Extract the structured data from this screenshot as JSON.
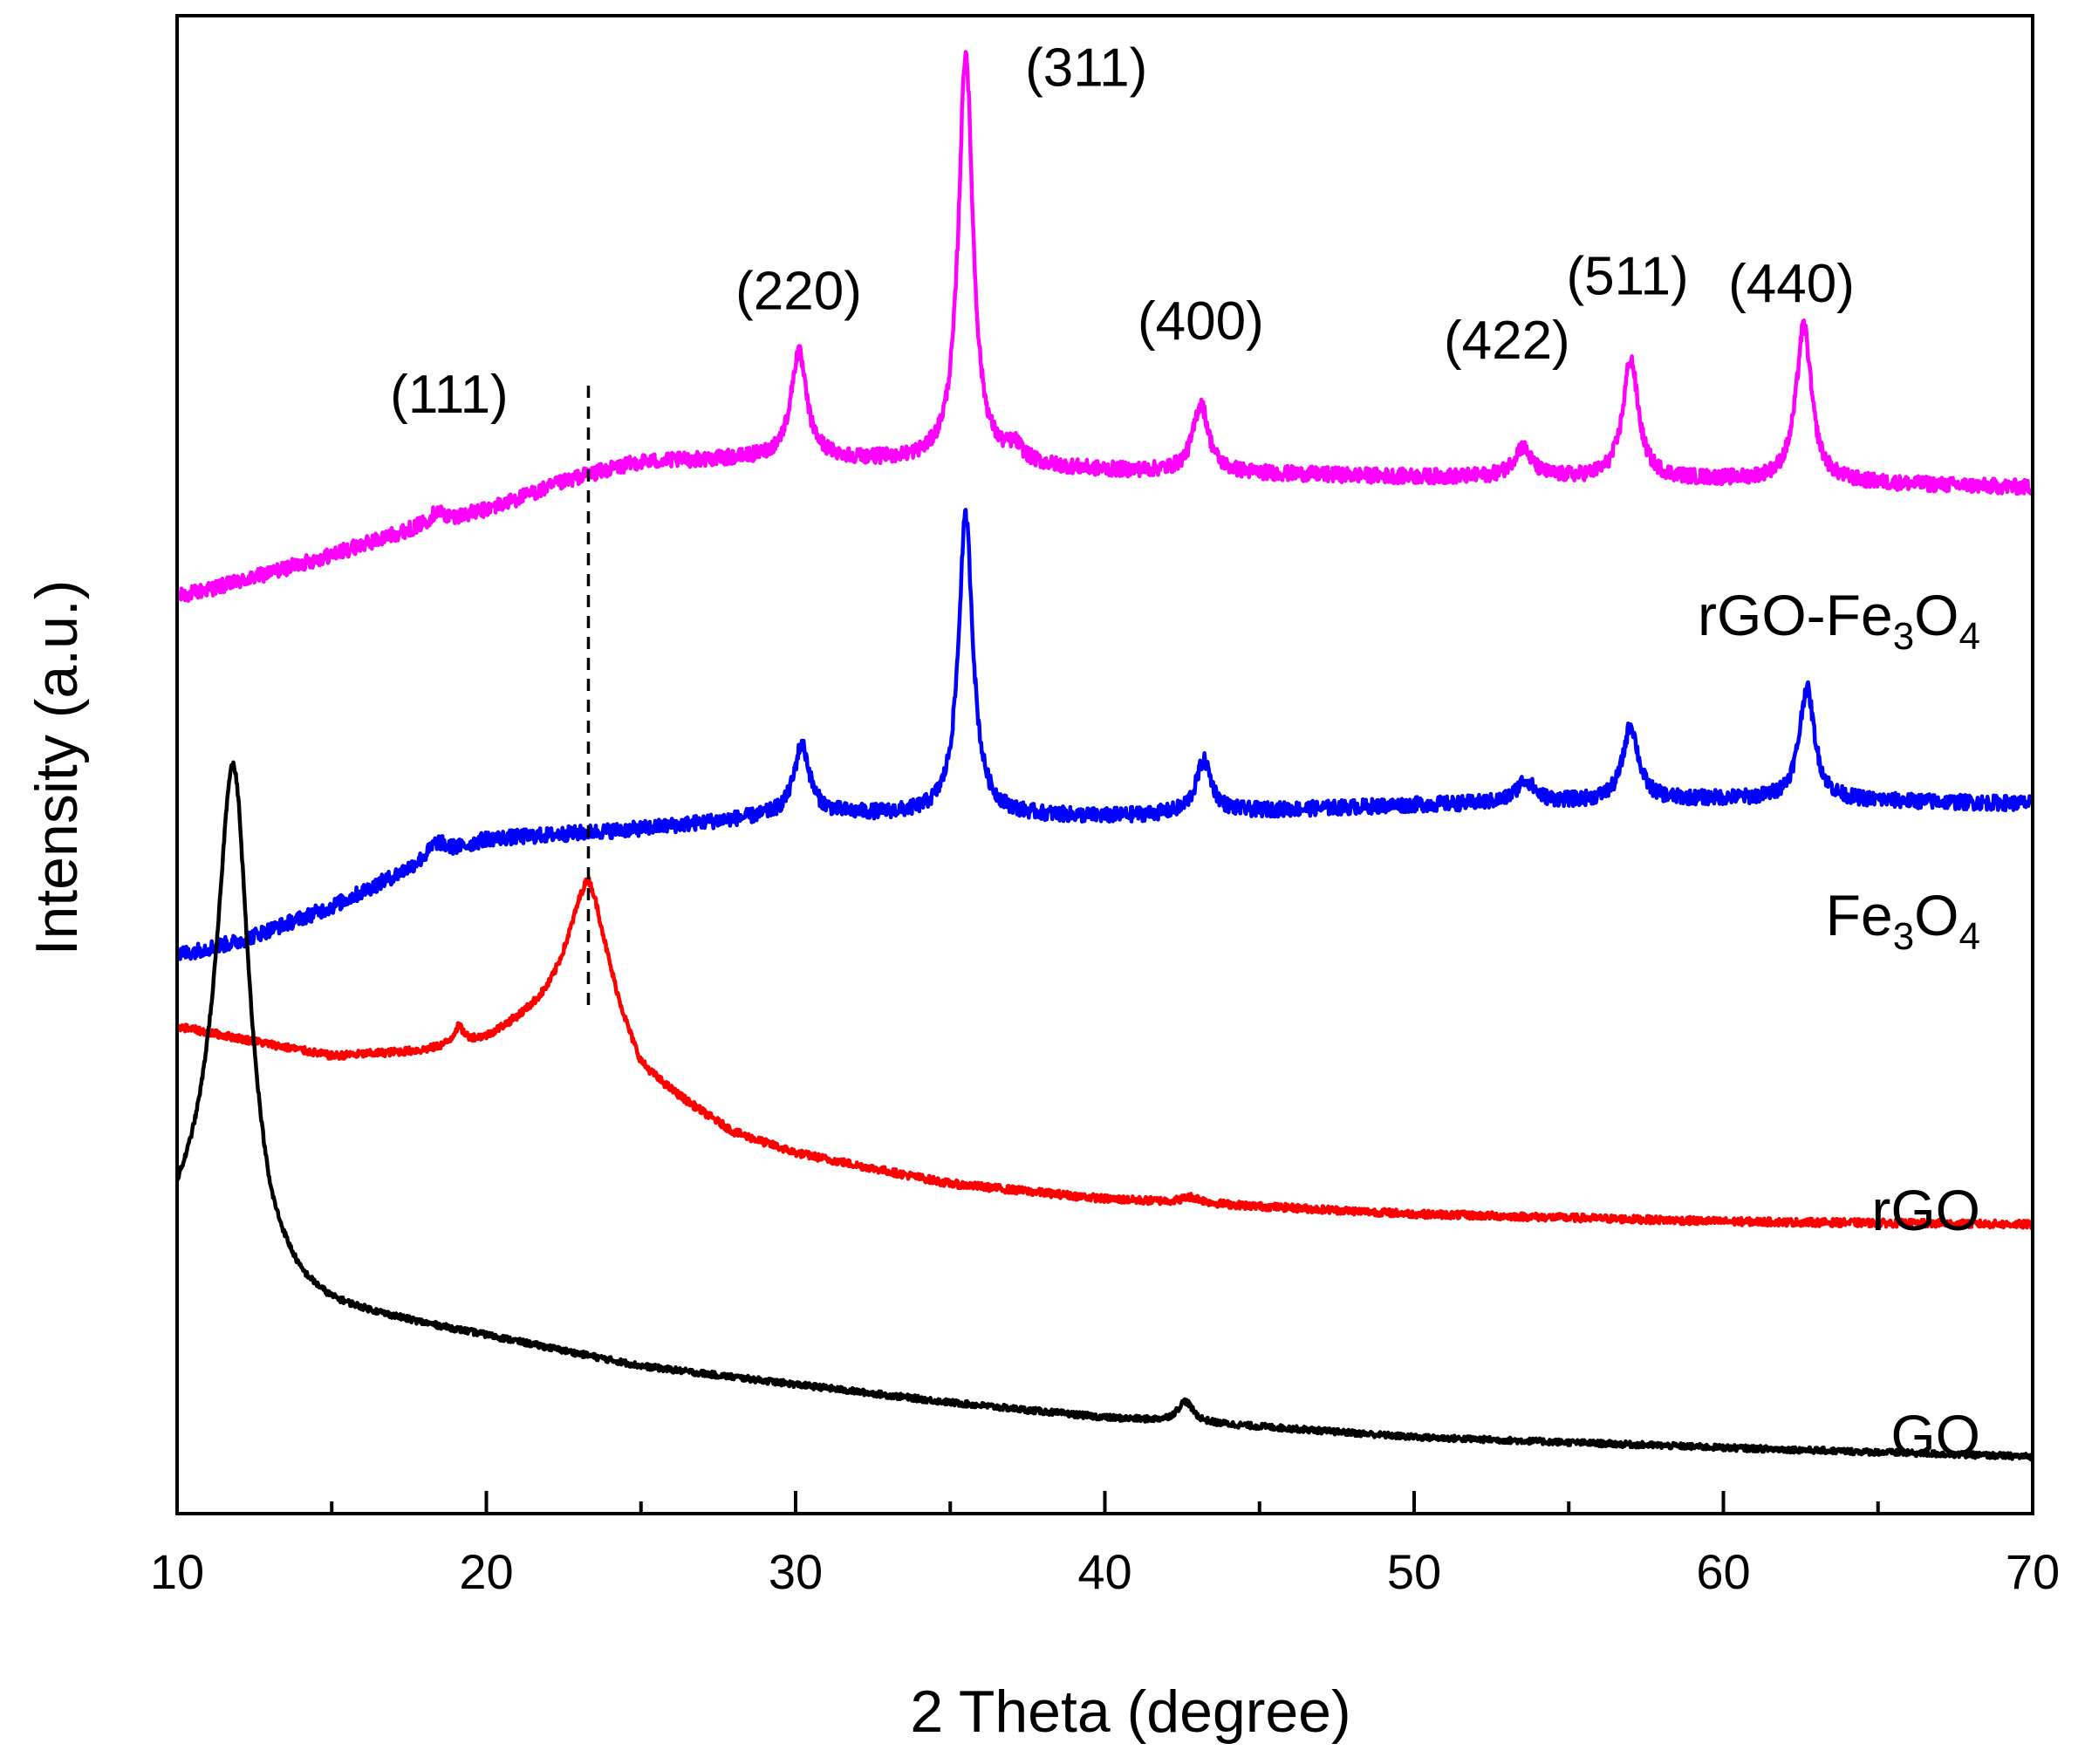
{
  "chart_data": {
    "type": "line",
    "xlabel": "2 Theta (degree)",
    "ylabel": "Intensity (a.u.)",
    "xlim": [
      10,
      70
    ],
    "ylim": [
      0,
      100
    ],
    "x_ticks": [
      "10",
      "20",
      "30",
      "40",
      "50",
      "60",
      "70"
    ],
    "y_ticks_shown": false,
    "reference_line_x": 23.3,
    "series": [
      {
        "name": "rGO-Fe3O4",
        "label_main": "rGO-Fe",
        "label_sub1": "3",
        "label_mid": "O",
        "label_sub2": "4",
        "color": "#ff00ff",
        "baseline": [
          [
            10,
            61.2
          ],
          [
            12,
            62.2
          ],
          [
            15,
            64.0
          ],
          [
            18,
            66.0
          ],
          [
            20,
            67.0
          ],
          [
            23,
            69.2
          ],
          [
            25,
            70.2
          ],
          [
            30,
            70.5
          ],
          [
            40,
            69.6
          ],
          [
            50,
            69.2
          ],
          [
            60,
            69.0
          ],
          [
            70,
            68.5
          ]
        ],
        "peaks": [
          {
            "x": 18.4,
            "h": 0.7,
            "w": 0.25
          },
          {
            "x": 30.1,
            "h": 7.0,
            "w": 0.3
          },
          {
            "x": 35.5,
            "h": 27.5,
            "w": 0.28
          },
          {
            "x": 37.1,
            "h": 1.0,
            "w": 0.3
          },
          {
            "x": 43.1,
            "h": 4.6,
            "w": 0.3
          },
          {
            "x": 53.5,
            "h": 2.0,
            "w": 0.35
          },
          {
            "x": 57.0,
            "h": 8.0,
            "w": 0.3
          },
          {
            "x": 62.6,
            "h": 10.4,
            "w": 0.3
          }
        ],
        "noise": 0.5
      },
      {
        "name": "Fe3O4",
        "label_main": "Fe",
        "label_sub1": "3",
        "label_mid": "O",
        "label_sub2": "4",
        "color": "#0000ff",
        "baseline": [
          [
            10,
            37.3
          ],
          [
            12,
            38.2
          ],
          [
            15,
            40.5
          ],
          [
            18,
            43.5
          ],
          [
            20,
            45.0
          ],
          [
            25,
            45.7
          ],
          [
            30,
            46.7
          ],
          [
            40,
            46.5
          ],
          [
            50,
            47.3
          ],
          [
            60,
            47.7
          ],
          [
            70,
            47.4
          ]
        ],
        "peaks": [
          {
            "x": 18.4,
            "h": 1.0,
            "w": 0.35
          },
          {
            "x": 30.2,
            "h": 4.6,
            "w": 0.3
          },
          {
            "x": 35.5,
            "h": 20.0,
            "w": 0.28
          },
          {
            "x": 43.2,
            "h": 3.5,
            "w": 0.3
          },
          {
            "x": 53.6,
            "h": 1.5,
            "w": 0.35
          },
          {
            "x": 57.0,
            "h": 5.0,
            "w": 0.3
          },
          {
            "x": 62.7,
            "h": 7.5,
            "w": 0.3
          }
        ],
        "noise": 0.5
      },
      {
        "name": "rGO",
        "label_main": "rGO",
        "color": "#ff0000",
        "baseline": [
          [
            10,
            32.5
          ],
          [
            15,
            30.5
          ],
          [
            18,
            30.8
          ],
          [
            20,
            31.5
          ],
          [
            22,
            33.5
          ],
          [
            23.3,
            35.5
          ],
          [
            25,
            29.0
          ],
          [
            28,
            25.3
          ],
          [
            30,
            24.0
          ],
          [
            35,
            22.0
          ],
          [
            40,
            21.0
          ],
          [
            50,
            20.0
          ],
          [
            60,
            19.5
          ],
          [
            70,
            19.3
          ]
        ],
        "peaks": [
          {
            "x": 19.1,
            "h": 1.1,
            "w": 0.2
          },
          {
            "x": 23.3,
            "h": 6.8,
            "w": 0.8
          },
          {
            "x": 42.8,
            "h": 0.4,
            "w": 0.4
          }
        ],
        "noise": 0.25
      },
      {
        "name": "GO",
        "label_main": "GO",
        "color": "#000000",
        "baseline": [
          [
            10,
            19.5
          ],
          [
            11,
            22.0
          ],
          [
            12,
            22.0
          ],
          [
            13,
            16.5
          ],
          [
            14,
            14.5
          ],
          [
            15,
            13.6
          ],
          [
            18,
            12.5
          ],
          [
            20,
            11.8
          ],
          [
            25,
            9.8
          ],
          [
            30,
            8.6
          ],
          [
            35,
            7.4
          ],
          [
            40,
            6.4
          ],
          [
            45,
            5.8
          ],
          [
            50,
            5.1
          ],
          [
            60,
            4.4
          ],
          [
            70,
            3.8
          ]
        ],
        "peaks": [
          {
            "x": 11.8,
            "h": 28.0,
            "w": 0.6
          },
          {
            "x": 42.6,
            "h": 1.4,
            "w": 0.3
          }
        ],
        "noise": 0.2
      }
    ],
    "annotations": [
      {
        "text": "(111)",
        "x": 18.8,
        "y": 73.5
      },
      {
        "text": "(220)",
        "x": 30.1,
        "y": 80.4
      },
      {
        "text": "(311)",
        "x": 39.4,
        "y": 95.3
      },
      {
        "text": "(400)",
        "x": 43.1,
        "y": 78.4
      },
      {
        "text": "(422)",
        "x": 53.0,
        "y": 77.1
      },
      {
        "text": "(511)",
        "x": 56.9,
        "y": 81.4
      },
      {
        "text": "(440)",
        "x": 62.2,
        "y": 80.9
      }
    ]
  }
}
